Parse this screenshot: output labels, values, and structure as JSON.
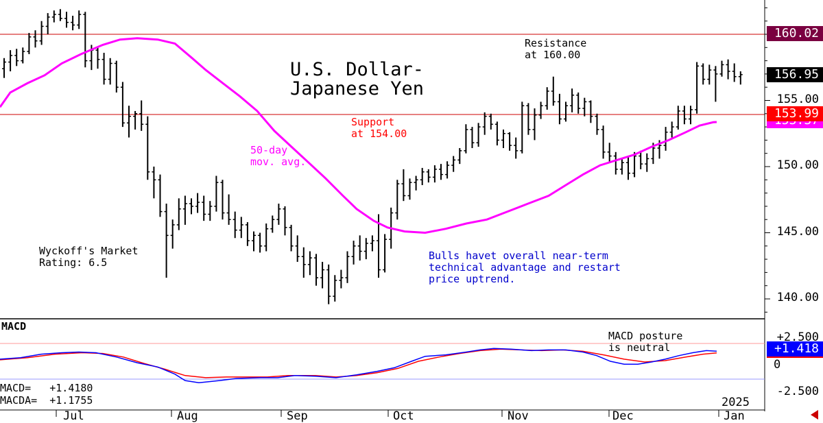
{
  "chart_data": [
    {
      "type": "ohlc",
      "title": "U.S. Dollar-\nJapanese Yen",
      "y_ticks": [
        "155.00",
        "150.00",
        "145.00",
        "140.00"
      ],
      "ylim": [
        138.5,
        162.5
      ],
      "x_labels": [
        "Jul",
        "Aug",
        "Sep",
        "Oct",
        "Nov",
        "Dec",
        "Jan"
      ],
      "year_label": "2025",
      "last_price": "156.95",
      "resistance": {
        "value": 160.02,
        "label": "160.02",
        "note": "Resistance\nat 160.00"
      },
      "support": {
        "value": 153.99,
        "label": "153.99",
        "note": "Support\nat 154.00"
      },
      "ma_label": "50-day\nmov. avg.",
      "ma_value_label": "153.37",
      "rating_text": "Wyckoff's Market\nRating: 6.5",
      "commentary": "Bulls havet overall near-term\ntechnical advantage and restart\nprice uptrend.",
      "colors": {
        "bars": "#000000",
        "ma": "#ff00ff",
        "level_line": "#cc0000",
        "commentary": "#0000cc",
        "resistance_badge": "#7a0040",
        "price_badge": "#000000",
        "support_badge": "#ff0000"
      },
      "ohlc": [
        [
          157.4,
          158.2,
          156.7,
          157.9
        ],
        [
          157.9,
          158.8,
          157.2,
          158.4
        ],
        [
          158.4,
          158.9,
          157.6,
          158.0
        ],
        [
          158.0,
          159.0,
          157.8,
          158.7
        ],
        [
          158.7,
          160.1,
          158.5,
          159.8
        ],
        [
          159.8,
          160.3,
          159.0,
          159.5
        ],
        [
          159.5,
          161.0,
          159.2,
          160.6
        ],
        [
          160.6,
          161.6,
          160.0,
          161.3
        ],
        [
          161.3,
          161.8,
          160.9,
          161.5
        ],
        [
          161.5,
          161.9,
          161.0,
          161.2
        ],
        [
          161.2,
          161.7,
          160.5,
          160.9
        ],
        [
          160.9,
          161.4,
          160.3,
          160.7
        ],
        [
          160.7,
          161.8,
          160.4,
          161.5
        ],
        [
          161.5,
          161.7,
          157.5,
          158.0
        ],
        [
          158.0,
          159.2,
          157.3,
          158.8
        ],
        [
          158.8,
          159.0,
          157.4,
          158.1
        ],
        [
          158.1,
          158.6,
          156.2,
          156.6
        ],
        [
          156.6,
          158.2,
          156.2,
          157.8
        ],
        [
          157.8,
          158.0,
          155.6,
          156.0
        ],
        [
          156.0,
          156.4,
          153.0,
          153.3
        ],
        [
          153.3,
          154.6,
          152.2,
          153.8
        ],
        [
          153.8,
          154.2,
          152.8,
          154.0
        ],
        [
          154.0,
          155.0,
          152.7,
          153.2
        ],
        [
          153.2,
          153.8,
          149.0,
          149.6
        ],
        [
          149.6,
          150.0,
          147.6,
          149.0
        ],
        [
          149.0,
          149.4,
          146.2,
          146.6
        ],
        [
          146.6,
          147.2,
          141.6,
          144.8
        ],
        [
          144.8,
          146.0,
          143.8,
          145.6
        ],
        [
          145.6,
          147.6,
          145.2,
          146.8
        ],
        [
          146.8,
          147.8,
          145.6,
          147.2
        ],
        [
          147.2,
          147.6,
          146.4,
          147.0
        ],
        [
          147.0,
          148.0,
          146.5,
          147.3
        ],
        [
          147.3,
          147.8,
          145.9,
          146.4
        ],
        [
          146.4,
          147.4,
          145.9,
          147.0
        ],
        [
          147.0,
          149.3,
          146.6,
          148.8
        ],
        [
          148.8,
          149.0,
          146.0,
          146.5
        ],
        [
          146.5,
          147.9,
          145.6,
          146.0
        ],
        [
          146.0,
          146.6,
          144.6,
          145.2
        ],
        [
          145.2,
          146.2,
          144.6,
          145.6
        ],
        [
          145.6,
          145.8,
          144.0,
          144.4
        ],
        [
          144.4,
          145.1,
          143.6,
          144.8
        ],
        [
          144.8,
          145.0,
          143.5,
          144.0
        ],
        [
          144.0,
          145.7,
          143.6,
          145.3
        ],
        [
          145.3,
          146.3,
          145.0,
          146.0
        ],
        [
          146.0,
          147.2,
          145.6,
          146.8
        ],
        [
          146.8,
          147.0,
          144.8,
          145.4
        ],
        [
          145.4,
          145.6,
          143.6,
          144.0
        ],
        [
          144.0,
          144.8,
          142.8,
          143.2
        ],
        [
          143.2,
          143.9,
          141.6,
          142.6
        ],
        [
          142.6,
          143.6,
          141.8,
          143.1
        ],
        [
          143.1,
          143.4,
          141.0,
          141.6
        ],
        [
          141.6,
          142.8,
          140.8,
          142.2
        ],
        [
          142.2,
          142.6,
          139.6,
          140.2
        ],
        [
          140.2,
          141.8,
          139.8,
          141.4
        ],
        [
          141.4,
          142.2,
          140.8,
          141.6
        ],
        [
          141.6,
          143.6,
          141.2,
          143.2
        ],
        [
          143.2,
          144.4,
          142.6,
          144.0
        ],
        [
          144.0,
          144.8,
          142.9,
          143.6
        ],
        [
          143.6,
          144.6,
          143.0,
          144.2
        ],
        [
          144.2,
          144.8,
          143.6,
          144.4
        ],
        [
          144.4,
          146.4,
          141.6,
          142.2
        ],
        [
          142.2,
          144.9,
          142.0,
          144.5
        ],
        [
          144.5,
          146.9,
          143.8,
          146.5
        ],
        [
          146.5,
          149.0,
          146.0,
          148.7
        ],
        [
          148.7,
          149.8,
          147.4,
          147.8
        ],
        [
          147.8,
          149.1,
          147.5,
          148.8
        ],
        [
          148.8,
          149.3,
          148.2,
          149.0
        ],
        [
          149.0,
          149.9,
          148.6,
          149.6
        ],
        [
          149.6,
          149.8,
          148.8,
          149.2
        ],
        [
          149.2,
          150.1,
          148.8,
          149.8
        ],
        [
          149.8,
          150.2,
          149.0,
          149.4
        ],
        [
          149.4,
          150.4,
          149.1,
          150.1
        ],
        [
          150.1,
          150.8,
          149.6,
          150.5
        ],
        [
          150.5,
          151.4,
          150.2,
          151.2
        ],
        [
          151.2,
          153.2,
          151.0,
          152.8
        ],
        [
          152.8,
          153.0,
          151.4,
          151.8
        ],
        [
          151.8,
          153.3,
          151.5,
          153.0
        ],
        [
          153.0,
          154.1,
          152.4,
          153.8
        ],
        [
          153.8,
          154.0,
          152.8,
          153.2
        ],
        [
          153.2,
          153.4,
          151.6,
          152.0
        ],
        [
          152.0,
          152.8,
          151.4,
          152.5
        ],
        [
          152.5,
          152.6,
          151.2,
          151.6
        ],
        [
          151.6,
          152.2,
          150.6,
          151.2
        ],
        [
          151.2,
          154.9,
          151.0,
          154.6
        ],
        [
          154.6,
          154.8,
          152.4,
          152.8
        ],
        [
          152.8,
          154.4,
          152.0,
          153.9
        ],
        [
          153.9,
          154.9,
          153.6,
          154.6
        ],
        [
          154.6,
          156.0,
          154.3,
          155.7
        ],
        [
          155.7,
          156.8,
          154.6,
          154.9
        ],
        [
          154.9,
          155.5,
          153.2,
          153.6
        ],
        [
          153.6,
          154.9,
          153.4,
          154.6
        ],
        [
          154.6,
          155.9,
          154.1,
          155.4
        ],
        [
          155.4,
          155.6,
          154.0,
          154.4
        ],
        [
          154.4,
          155.2,
          153.8,
          154.9
        ],
        [
          154.9,
          155.0,
          153.3,
          153.8
        ],
        [
          153.8,
          154.0,
          152.4,
          152.8
        ],
        [
          152.8,
          153.1,
          150.6,
          151.1
        ],
        [
          151.1,
          151.8,
          150.3,
          150.8
        ],
        [
          150.8,
          151.1,
          149.4,
          149.8
        ],
        [
          149.8,
          150.6,
          149.4,
          150.3
        ],
        [
          150.3,
          150.8,
          149.0,
          149.5
        ],
        [
          149.5,
          151.1,
          149.2,
          150.8
        ],
        [
          150.8,
          151.2,
          149.8,
          150.2
        ],
        [
          150.2,
          151.0,
          149.6,
          150.6
        ],
        [
          150.6,
          151.8,
          150.2,
          151.4
        ],
        [
          151.4,
          152.0,
          150.6,
          151.6
        ],
        [
          151.6,
          153.0,
          151.2,
          152.6
        ],
        [
          152.6,
          153.4,
          152.2,
          153.0
        ],
        [
          153.0,
          154.6,
          152.8,
          154.2
        ],
        [
          154.2,
          154.6,
          153.2,
          153.6
        ],
        [
          153.6,
          154.6,
          153.2,
          154.3
        ],
        [
          154.3,
          157.9,
          154.0,
          157.6
        ],
        [
          157.6,
          157.8,
          156.2,
          156.6
        ],
        [
          156.6,
          157.7,
          156.2,
          157.3
        ],
        [
          157.3,
          157.6,
          154.9,
          157.0
        ],
        [
          157.0,
          158.0,
          156.8,
          157.7
        ],
        [
          157.7,
          158.1,
          156.6,
          157.2
        ],
        [
          157.2,
          157.8,
          156.4,
          156.8
        ],
        [
          156.8,
          157.2,
          156.2,
          156.95
        ]
      ],
      "ma": [
        [
          0,
          154.5
        ],
        [
          15,
          155.6
        ],
        [
          40,
          156.3
        ],
        [
          65,
          156.9
        ],
        [
          90,
          157.8
        ],
        [
          118,
          158.5
        ],
        [
          150,
          159.2
        ],
        [
          175,
          159.6
        ],
        [
          200,
          159.7
        ],
        [
          230,
          159.6
        ],
        [
          255,
          159.3
        ],
        [
          280,
          158.2
        ],
        [
          300,
          157.3
        ],
        [
          325,
          156.3
        ],
        [
          350,
          155.3
        ],
        [
          375,
          154.2
        ],
        [
          400,
          152.7
        ],
        [
          425,
          151.5
        ],
        [
          450,
          150.3
        ],
        [
          475,
          149.1
        ],
        [
          500,
          147.8
        ],
        [
          520,
          146.8
        ],
        [
          545,
          145.9
        ],
        [
          565,
          145.4
        ],
        [
          590,
          145.1
        ],
        [
          620,
          145.0
        ],
        [
          650,
          145.3
        ],
        [
          680,
          145.7
        ],
        [
          710,
          146.0
        ],
        [
          740,
          146.6
        ],
        [
          770,
          147.2
        ],
        [
          800,
          147.8
        ],
        [
          825,
          148.6
        ],
        [
          850,
          149.4
        ],
        [
          875,
          150.1
        ],
        [
          900,
          150.5
        ],
        [
          925,
          150.9
        ],
        [
          950,
          151.5
        ],
        [
          975,
          152.0
        ],
        [
          1000,
          152.6
        ],
        [
          1020,
          153.1
        ],
        [
          1040,
          153.35
        ],
        [
          1045,
          153.37
        ]
      ]
    },
    {
      "type": "line",
      "title": "MACD",
      "y_ticks": [
        "+2.500",
        "0",
        "-2.500"
      ],
      "ylim": [
        -3.3,
        3.0
      ],
      "posture_note": "MACD posture\nis neutral",
      "macd_label": "MACD=   +1.4180",
      "macda_label": "MACDA=  +1.1755",
      "macd_value_label": "+1.418",
      "colors": {
        "macd": "#0000ff",
        "macda": "#ff0000",
        "ref_upper": "#ff9999",
        "ref_lower": "#9999ff",
        "macd_badge": "#0000ff",
        "macda_badge": "#ff0000"
      },
      "series": [
        {
          "name": "MACD",
          "values": [
            [
              0,
              0.3
            ],
            [
              30,
              0.5
            ],
            [
              60,
              1.0
            ],
            [
              90,
              1.2
            ],
            [
              115,
              1.3
            ],
            [
              140,
              1.2
            ],
            [
              170,
              0.6
            ],
            [
              200,
              -0.2
            ],
            [
              230,
              -0.8
            ],
            [
              255,
              -1.8
            ],
            [
              270,
              -2.7
            ],
            [
              290,
              -3.0
            ],
            [
              320,
              -2.7
            ],
            [
              345,
              -2.4
            ],
            [
              380,
              -2.3
            ],
            [
              405,
              -2.3
            ],
            [
              430,
              -2.0
            ],
            [
              460,
              -2.1
            ],
            [
              490,
              -2.3
            ],
            [
              520,
              -1.9
            ],
            [
              550,
              -1.4
            ],
            [
              575,
              -0.9
            ],
            [
              600,
              0.0
            ],
            [
              620,
              0.7
            ],
            [
              650,
              0.9
            ],
            [
              680,
              1.3
            ],
            [
              700,
              1.6
            ],
            [
              720,
              1.8
            ],
            [
              745,
              1.7
            ],
            [
              775,
              1.5
            ],
            [
              800,
              1.6
            ],
            [
              825,
              1.6
            ],
            [
              850,
              1.3
            ],
            [
              870,
              0.8
            ],
            [
              890,
              0.0
            ],
            [
              910,
              -0.4
            ],
            [
              930,
              -0.4
            ],
            [
              950,
              -0.1
            ],
            [
              970,
              0.3
            ],
            [
              990,
              0.8
            ],
            [
              1010,
              1.2
            ],
            [
              1030,
              1.5
            ],
            [
              1045,
              1.42
            ]
          ]
        },
        {
          "name": "MACDA",
          "values": [
            [
              0,
              0.2
            ],
            [
              40,
              0.5
            ],
            [
              80,
              1.0
            ],
            [
              120,
              1.2
            ],
            [
              150,
              1.1
            ],
            [
              180,
              0.6
            ],
            [
              210,
              -0.3
            ],
            [
              240,
              -1.1
            ],
            [
              270,
              -2.0
            ],
            [
              300,
              -2.3
            ],
            [
              330,
              -2.2
            ],
            [
              360,
              -2.2
            ],
            [
              390,
              -2.2
            ],
            [
              420,
              -2.0
            ],
            [
              460,
              -2.0
            ],
            [
              490,
              -2.2
            ],
            [
              520,
              -2.0
            ],
            [
              550,
              -1.6
            ],
            [
              580,
              -1.0
            ],
            [
              610,
              0.0
            ],
            [
              640,
              0.6
            ],
            [
              670,
              1.1
            ],
            [
              700,
              1.5
            ],
            [
              730,
              1.7
            ],
            [
              760,
              1.6
            ],
            [
              790,
              1.5
            ],
            [
              820,
              1.6
            ],
            [
              850,
              1.4
            ],
            [
              880,
              0.9
            ],
            [
              910,
              0.3
            ],
            [
              940,
              -0.1
            ],
            [
              970,
              0.1
            ],
            [
              1000,
              0.6
            ],
            [
              1025,
              1.0
            ],
            [
              1045,
              1.18
            ]
          ]
        }
      ]
    }
  ]
}
